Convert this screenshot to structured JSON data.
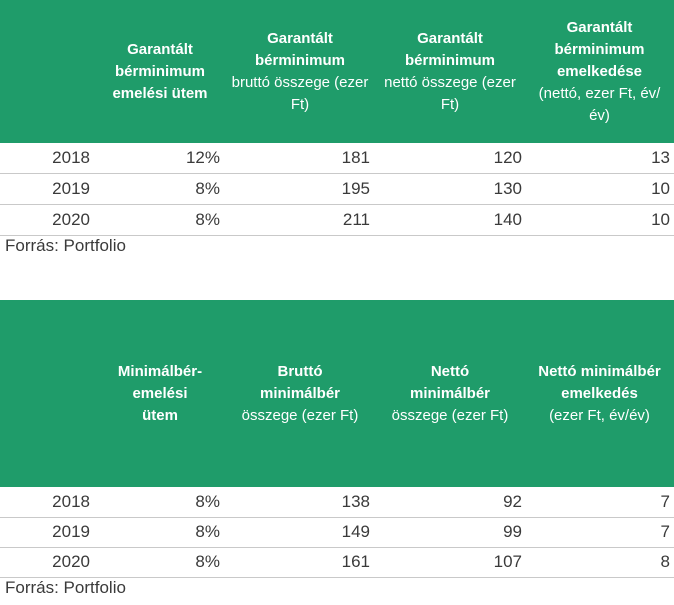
{
  "table1": {
    "headers": [
      {
        "bold": "Garantált bérminimum emelési ütem",
        "normal": ""
      },
      {
        "bold": "Garantált bérminimum",
        "normal": "bruttó összege (ezer Ft)"
      },
      {
        "bold": "Garantált bérminimum",
        "normal": "nettó összege (ezer Ft)"
      },
      {
        "bold": "Garantált bérminimum emelkedése",
        "normal": "(nettó, ezer Ft, év/év)"
      }
    ],
    "rows": [
      [
        "2018",
        "12%",
        "181",
        "120",
        "13"
      ],
      [
        "2019",
        "8%",
        "195",
        "130",
        "10"
      ],
      [
        "2020",
        "8%",
        "211",
        "140",
        "10"
      ]
    ],
    "source": "Forrás: Portfolio"
  },
  "table2": {
    "headers": [
      {
        "bold": "Minimálbér-emelési ütem",
        "normal": ""
      },
      {
        "bold": "Bruttó minimálbér",
        "normal": "összege (ezer Ft)"
      },
      {
        "bold": "Nettó minimálbér",
        "normal": "összege (ezer Ft)"
      },
      {
        "bold": "Nettó minimálbér emelkedés",
        "normal": "(ezer Ft, év/év)"
      }
    ],
    "rows": [
      [
        "2018",
        "8%",
        "138",
        "92",
        "7"
      ],
      [
        "2019",
        "8%",
        "149",
        "99",
        "7"
      ],
      [
        "2020",
        "8%",
        "161",
        "107",
        "8"
      ]
    ],
    "source": "Forrás: Portfolio"
  },
  "colors": {
    "header_bg": "#1f9c6a",
    "header_text": "#ffffff",
    "rule": "#c9c9c9"
  }
}
